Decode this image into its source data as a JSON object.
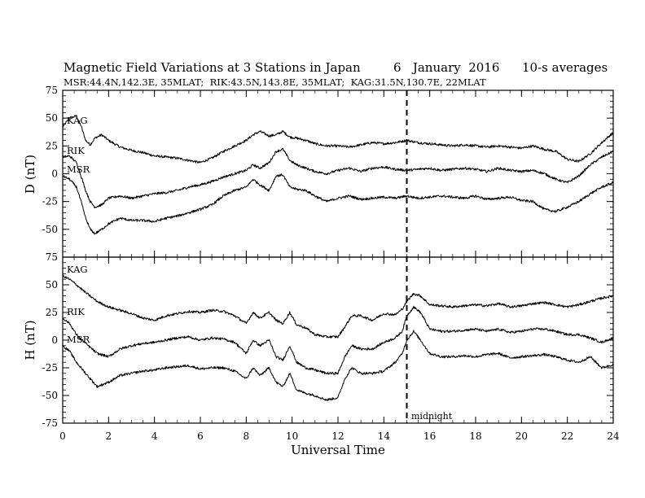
{
  "chart_data": {
    "type": "line",
    "title": "Magnetic Field Variations at 3 Stations in Japan",
    "date_label": "6   January  2016",
    "averaging_label": "10-s averages",
    "subtitle": "MSR:44.4N,142.3E, 35MLAT;  RIK:43.5N,143.8E, 35MLAT;  KAG:31.5N,130.7E, 22MLAT",
    "xlabel": "Universal Time",
    "xlim": [
      0,
      24
    ],
    "x_ticks": [
      0,
      2,
      4,
      6,
      8,
      10,
      12,
      14,
      16,
      18,
      20,
      22,
      24
    ],
    "annotation": {
      "text": "midnight",
      "x": 15.0,
      "style": "dashed vertical line"
    },
    "panels": [
      {
        "name": "D",
        "ylabel": "D (nT)",
        "ylim": [
          -75,
          75
        ],
        "y_ticks": [
          75,
          50,
          25,
          0,
          -25,
          -50,
          -75
        ],
        "series": [
          {
            "name": "KAG",
            "x": [
              0,
              0.3,
              0.6,
              0.8,
              1.0,
              1.2,
              1.4,
              1.7,
              2.0,
              2.5,
              3.0,
              3.5,
              4.0,
              4.5,
              5.0,
              5.5,
              6.0,
              6.5,
              7.0,
              7.5,
              8.0,
              8.3,
              8.6,
              9.0,
              9.3,
              9.6,
              9.9,
              10.2,
              10.6,
              11.0,
              11.5,
              12.0,
              12.5,
              13.0,
              13.5,
              14.0,
              14.5,
              15.0,
              15.5,
              16.0,
              16.5,
              17.0,
              17.5,
              18.0,
              18.5,
              19.0,
              19.5,
              20.0,
              20.5,
              21.0,
              21.5,
              22.0,
              22.5,
              23.0,
              23.5,
              24.0
            ],
            "values": [
              42,
              50,
              52,
              43,
              30,
              26,
              32,
              35,
              30,
              24,
              21,
              19,
              16,
              15,
              14,
              12,
              10,
              14,
              20,
              25,
              30,
              35,
              38,
              34,
              35,
              38,
              33,
              32,
              30,
              27,
              25,
              25,
              24,
              26,
              28,
              27,
              28,
              30,
              28,
              27,
              26,
              25,
              26,
              25,
              24,
              25,
              24,
              23,
              25,
              22,
              20,
              13,
              11,
              18,
              28,
              37
            ]
          },
          {
            "name": "RIK",
            "x": [
              0,
              0.3,
              0.6,
              0.8,
              1.0,
              1.2,
              1.4,
              1.7,
              2.0,
              2.5,
              3.0,
              3.5,
              4.0,
              4.5,
              5.0,
              5.5,
              6.0,
              6.5,
              7.0,
              7.5,
              8.0,
              8.3,
              8.6,
              9.0,
              9.3,
              9.6,
              9.9,
              10.2,
              10.6,
              11.0,
              11.5,
              12.0,
              12.5,
              13.0,
              13.5,
              14.0,
              14.5,
              15.0,
              15.5,
              16.0,
              16.5,
              17.0,
              17.5,
              18.0,
              18.5,
              19.0,
              19.5,
              20.0,
              20.5,
              21.0,
              21.5,
              22.0,
              22.5,
              23.0,
              23.5,
              24.0
            ],
            "values": [
              15,
              16,
              10,
              -2,
              -15,
              -25,
              -30,
              -28,
              -22,
              -20,
              -22,
              -20,
              -18,
              -17,
              -15,
              -12,
              -10,
              -7,
              -3,
              0,
              3,
              8,
              5,
              10,
              20,
              22,
              12,
              8,
              5,
              2,
              0,
              3,
              5,
              2,
              5,
              6,
              4,
              3,
              4,
              5,
              3,
              4,
              5,
              4,
              2,
              5,
              3,
              2,
              3,
              0,
              -5,
              -8,
              -2,
              8,
              15,
              20
            ]
          },
          {
            "name": "MSR",
            "x": [
              0,
              0.3,
              0.6,
              0.8,
              1.0,
              1.2,
              1.4,
              1.7,
              2.0,
              2.5,
              3.0,
              3.5,
              4.0,
              4.5,
              5.0,
              5.5,
              6.0,
              6.5,
              7.0,
              7.5,
              8.0,
              8.3,
              8.6,
              9.0,
              9.3,
              9.6,
              9.9,
              10.2,
              10.6,
              11.0,
              11.5,
              12.0,
              12.5,
              13.0,
              13.5,
              14.0,
              14.5,
              15.0,
              15.5,
              16.0,
              16.5,
              17.0,
              17.5,
              18.0,
              18.5,
              19.0,
              19.5,
              20.0,
              20.5,
              21.0,
              21.5,
              22.0,
              22.5,
              23.0,
              23.5,
              24.0
            ],
            "values": [
              -2,
              -5,
              -12,
              -25,
              -40,
              -50,
              -54,
              -50,
              -45,
              -40,
              -42,
              -42,
              -43,
              -40,
              -38,
              -35,
              -32,
              -28,
              -20,
              -15,
              -12,
              -5,
              -10,
              -15,
              -2,
              -1,
              -12,
              -14,
              -15,
              -20,
              -25,
              -22,
              -20,
              -23,
              -22,
              -21,
              -22,
              -20,
              -22,
              -21,
              -20,
              -21,
              -22,
              -20,
              -23,
              -22,
              -21,
              -24,
              -25,
              -32,
              -34,
              -30,
              -25,
              -18,
              -12,
              -8
            ]
          }
        ]
      },
      {
        "name": "H",
        "ylabel": "H (nT)",
        "ylim": [
          -75,
          75
        ],
        "y_ticks": [
          75,
          50,
          25,
          0,
          -25,
          -50,
          -75
        ],
        "series": [
          {
            "name": "KAG",
            "x": [
              0,
              0.3,
              0.6,
              1.0,
              1.5,
              2.0,
              2.5,
              3.0,
              3.5,
              4.0,
              4.5,
              5.0,
              5.5,
              6.0,
              6.5,
              7.0,
              7.5,
              8.0,
              8.3,
              8.6,
              9.0,
              9.3,
              9.6,
              9.9,
              10.2,
              10.6,
              11.0,
              11.5,
              12.0,
              12.3,
              12.6,
              13.0,
              13.5,
              14.0,
              14.5,
              14.8,
              15.0,
              15.3,
              15.6,
              16.0,
              16.5,
              17.0,
              17.5,
              18.0,
              18.5,
              19.0,
              19.5,
              20.0,
              20.5,
              21.0,
              21.5,
              22.0,
              22.5,
              23.0,
              23.5,
              24.0
            ],
            "values": [
              58,
              55,
              50,
              43,
              35,
              30,
              27,
              24,
              20,
              18,
              22,
              24,
              26,
              25,
              27,
              26,
              22,
              15,
              25,
              20,
              25,
              18,
              15,
              25,
              14,
              11,
              5,
              3,
              3,
              12,
              22,
              22,
              18,
              24,
              23,
              28,
              35,
              42,
              40,
              32,
              31,
              30,
              31,
              32,
              31,
              33,
              30,
              31,
              33,
              34,
              32,
              30,
              32,
              35,
              38,
              40
            ]
          },
          {
            "name": "RIK",
            "x": [
              0,
              0.3,
              0.6,
              1.0,
              1.5,
              2.0,
              2.5,
              3.0,
              3.5,
              4.0,
              4.5,
              5.0,
              5.5,
              6.0,
              6.5,
              7.0,
              7.5,
              8.0,
              8.3,
              8.6,
              9.0,
              9.3,
              9.6,
              9.9,
              10.2,
              10.6,
              11.0,
              11.5,
              12.0,
              12.3,
              12.6,
              13.0,
              13.5,
              14.0,
              14.5,
              14.8,
              15.0,
              15.3,
              15.6,
              16.0,
              16.5,
              17.0,
              17.5,
              18.0,
              18.5,
              19.0,
              19.5,
              20.0,
              20.5,
              21.0,
              21.5,
              22.0,
              22.5,
              23.0,
              23.5,
              24.0
            ],
            "values": [
              20,
              15,
              5,
              -3,
              -12,
              -15,
              -8,
              -5,
              -3,
              -2,
              0,
              2,
              3,
              0,
              2,
              1,
              -2,
              -12,
              0,
              -5,
              0,
              -15,
              -18,
              -5,
              -20,
              -25,
              -27,
              -30,
              -30,
              -15,
              -5,
              -8,
              -8,
              -2,
              2,
              8,
              22,
              30,
              25,
              10,
              8,
              8,
              9,
              10,
              8,
              10,
              7,
              8,
              10,
              10,
              8,
              5,
              5,
              2,
              -2,
              2
            ]
          },
          {
            "name": "MSR",
            "x": [
              0,
              0.3,
              0.6,
              1.0,
              1.5,
              2.0,
              2.5,
              3.0,
              3.5,
              4.0,
              4.5,
              5.0,
              5.5,
              6.0,
              6.5,
              7.0,
              7.5,
              8.0,
              8.3,
              8.6,
              9.0,
              9.3,
              9.6,
              9.9,
              10.2,
              10.6,
              11.0,
              11.5,
              12.0,
              12.3,
              12.6,
              13.0,
              13.5,
              14.0,
              14.5,
              14.8,
              15.0,
              15.3,
              15.6,
              16.0,
              16.5,
              17.0,
              17.5,
              18.0,
              18.5,
              19.0,
              19.5,
              20.0,
              20.5,
              21.0,
              21.5,
              22.0,
              22.5,
              23.0,
              23.5,
              24.0
            ],
            "values": [
              -5,
              -10,
              -20,
              -30,
              -42,
              -38,
              -32,
              -30,
              -28,
              -27,
              -25,
              -24,
              -23,
              -26,
              -25,
              -25,
              -28,
              -35,
              -25,
              -32,
              -25,
              -38,
              -42,
              -30,
              -45,
              -48,
              -50,
              -54,
              -52,
              -35,
              -25,
              -30,
              -30,
              -28,
              -20,
              -12,
              0,
              8,
              0,
              -12,
              -15,
              -15,
              -14,
              -15,
              -13,
              -12,
              -16,
              -15,
              -14,
              -13,
              -15,
              -18,
              -20,
              -15,
              -25,
              -22
            ]
          }
        ]
      }
    ]
  }
}
